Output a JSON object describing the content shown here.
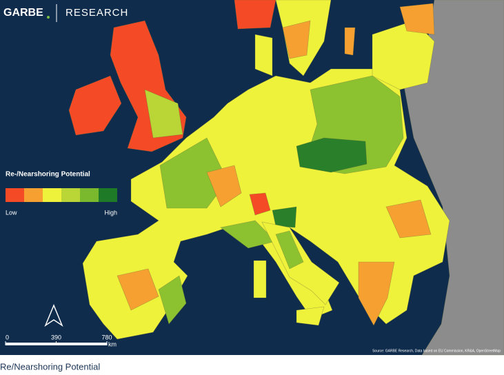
{
  "logo": {
    "brand": "GARBE",
    "division": "RESEARCH"
  },
  "legend": {
    "title": "Re-/Nearshoring Potential",
    "low": "Low",
    "high": "High"
  },
  "scale": {
    "ticks": [
      0,
      390,
      780
    ],
    "unit": "km"
  },
  "source": "Source: GARBE Research, Data based on EU Commission, KR&A, OpenStreetMap",
  "caption": "Re/Nearshoring Potential"
}
